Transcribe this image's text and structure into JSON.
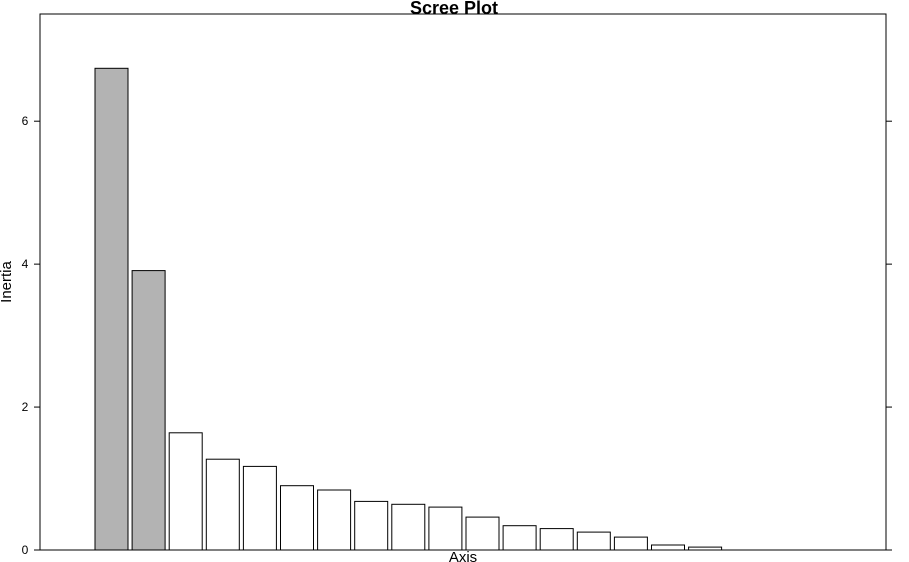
{
  "chart_data": {
    "type": "bar",
    "title": "Scree Plot",
    "xlabel": "Axis",
    "ylabel": "Inertia",
    "ylim": [
      0,
      7.5
    ],
    "y_ticks": [
      0,
      2,
      4,
      6
    ],
    "y_tick_labels": [
      "0",
      "2",
      "4",
      "6"
    ],
    "grid": false,
    "legend": "none",
    "num_slots": 21,
    "highlight_count": 2,
    "highlight_color": "#b3b3b3",
    "bar_color": "#ffffff",
    "outline_color": "#000000",
    "values": [
      6.74,
      3.91,
      1.64,
      1.27,
      1.17,
      0.9,
      0.84,
      0.68,
      0.64,
      0.6,
      0.46,
      0.34,
      0.3,
      0.25,
      0.18,
      0.07,
      0.04
    ]
  }
}
